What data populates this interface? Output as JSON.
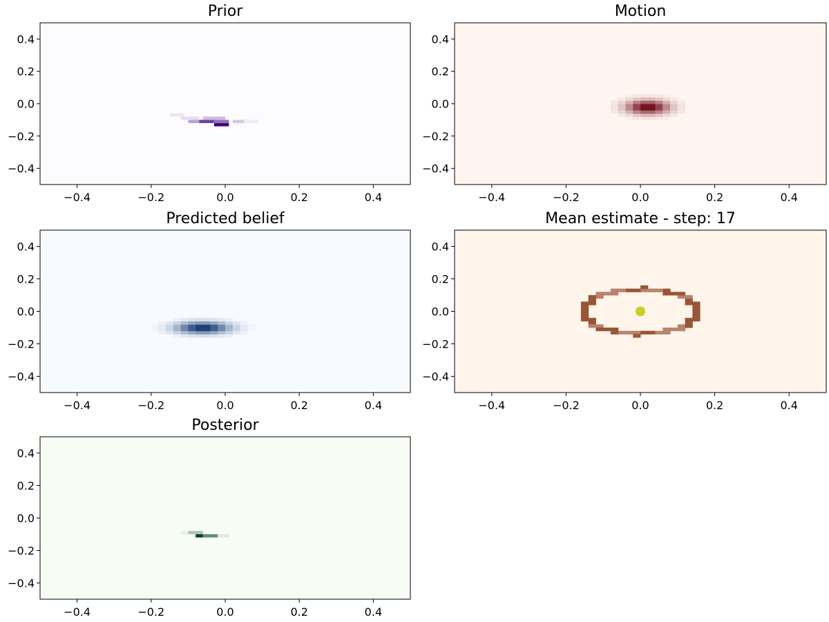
{
  "figure": {
    "background": "#ffffff",
    "panel_count": 5
  },
  "chart_data": [
    {
      "type": "heatmap",
      "title": "Prior",
      "colormap": "Purples",
      "colors": {
        "low": "#fcfbfd",
        "high": "#3f007d"
      },
      "xlim": [
        -0.5,
        0.5
      ],
      "ylim": [
        -0.5,
        0.5
      ],
      "xticks": [
        -0.4,
        -0.2,
        0.0,
        0.2,
        0.4
      ],
      "yticks": [
        -0.4,
        -0.2,
        0.0,
        0.2,
        0.4
      ],
      "xtick_labels": [
        "−0.4",
        "−0.2",
        "0.0",
        "0.2",
        "0.4"
      ],
      "ytick_labels": [
        "0.4",
        "0.2",
        "0.0",
        "−0.2",
        "−0.4"
      ],
      "xlabel": "",
      "ylabel": "",
      "grid": false,
      "cells": [
        {
          "x": -0.03,
          "y": -0.14,
          "w": 0.04,
          "h": 0.02,
          "v": 1.0
        },
        {
          "x": -0.07,
          "y": -0.12,
          "w": 0.04,
          "h": 0.02,
          "v": 0.75
        },
        {
          "x": -0.03,
          "y": -0.12,
          "w": 0.04,
          "h": 0.02,
          "v": 0.55
        },
        {
          "x": -0.1,
          "y": -0.12,
          "w": 0.03,
          "h": 0.02,
          "v": 0.35
        },
        {
          "x": 0.02,
          "y": -0.12,
          "w": 0.04,
          "h": 0.02,
          "v": 0.2
        },
        {
          "x": -0.06,
          "y": -0.1,
          "w": 0.06,
          "h": 0.02,
          "v": 0.25
        },
        {
          "x": -0.12,
          "y": -0.1,
          "w": 0.05,
          "h": 0.02,
          "v": 0.12
        },
        {
          "x": -0.15,
          "y": -0.08,
          "w": 0.04,
          "h": 0.02,
          "v": 0.08
        },
        {
          "x": 0.05,
          "y": -0.12,
          "w": 0.04,
          "h": 0.02,
          "v": 0.06
        }
      ]
    },
    {
      "type": "heatmap",
      "title": "Motion",
      "colormap": "Reds",
      "colors": {
        "low": "#fff5f0",
        "high": "#67000d"
      },
      "xlim": [
        -0.5,
        0.5
      ],
      "ylim": [
        -0.5,
        0.5
      ],
      "xticks": [
        -0.4,
        -0.2,
        0.0,
        0.2,
        0.4
      ],
      "yticks": [
        -0.4,
        -0.2,
        0.0,
        0.2,
        0.4
      ],
      "xtick_labels": [
        "−0.4",
        "−0.2",
        "0.0",
        "0.2",
        "0.4"
      ],
      "ytick_labels": [
        "0.4",
        "0.2",
        "0.0",
        "−0.2",
        "−0.4"
      ],
      "xlabel": "",
      "ylabel": "",
      "grid": false,
      "gaussian": {
        "cx": 0.02,
        "cy": -0.02,
        "sx": 0.04,
        "sy": 0.03
      }
    },
    {
      "type": "heatmap",
      "title": "Predicted belief",
      "colormap": "Blues",
      "colors": {
        "low": "#f7fbff",
        "high": "#08306b"
      },
      "xlim": [
        -0.5,
        0.5
      ],
      "ylim": [
        -0.5,
        0.5
      ],
      "xticks": [
        -0.4,
        -0.2,
        0.0,
        0.2,
        0.4
      ],
      "yticks": [
        -0.4,
        -0.2,
        0.0,
        0.2,
        0.4
      ],
      "xtick_labels": [
        "−0.4",
        "−0.2",
        "0.0",
        "0.2",
        "0.4"
      ],
      "ytick_labels": [
        "0.4",
        "0.2",
        "0.0",
        "−0.2",
        "−0.4"
      ],
      "xlabel": "",
      "ylabel": "",
      "grid": false,
      "gaussian": {
        "cx": -0.06,
        "cy": -0.1,
        "sx": 0.05,
        "sy": 0.025
      }
    },
    {
      "type": "heatmap",
      "title": "Mean estimate - step: 17",
      "colormap": "Oranges",
      "colors": {
        "low": "#fff5eb",
        "high": "#7f2704",
        "marker": "#cccc22"
      },
      "xlim": [
        -0.5,
        0.5
      ],
      "ylim": [
        -0.5,
        0.5
      ],
      "xticks": [
        -0.4,
        -0.2,
        0.0,
        0.2,
        0.4
      ],
      "yticks": [
        -0.4,
        -0.2,
        0.0,
        0.2,
        0.4
      ],
      "xtick_labels": [
        "−0.4",
        "−0.2",
        "0.0",
        "0.2",
        "0.4"
      ],
      "ytick_labels": [
        "0.4",
        "0.2",
        "0.0",
        "−0.2",
        "−0.4"
      ],
      "xlabel": "",
      "ylabel": "",
      "grid": false,
      "ellipse": {
        "cx": 0.0,
        "cy": 0.0,
        "rx": 0.15,
        "ry": 0.14
      },
      "mean_estimate": {
        "x": 0.0,
        "y": 0.0
      }
    },
    {
      "type": "heatmap",
      "title": "Posterior",
      "colormap": "Greens",
      "colors": {
        "low": "#f7fcf5",
        "high": "#00441b"
      },
      "xlim": [
        -0.5,
        0.5
      ],
      "ylim": [
        -0.5,
        0.5
      ],
      "xticks": [
        -0.4,
        -0.2,
        0.0,
        0.2,
        0.4
      ],
      "yticks": [
        -0.4,
        -0.2,
        0.0,
        0.2,
        0.4
      ],
      "xtick_labels": [
        "−0.4",
        "−0.2",
        "0.0",
        "0.2",
        "0.4"
      ],
      "ytick_labels": [
        "0.4",
        "0.2",
        "0.0",
        "−0.2",
        "−0.4"
      ],
      "xlabel": "",
      "ylabel": "",
      "grid": false,
      "cells": [
        {
          "x": -0.08,
          "y": -0.12,
          "w": 0.02,
          "h": 0.02,
          "v": 1.0
        },
        {
          "x": -0.06,
          "y": -0.12,
          "w": 0.04,
          "h": 0.02,
          "v": 0.6
        },
        {
          "x": -0.1,
          "y": -0.1,
          "w": 0.04,
          "h": 0.02,
          "v": 0.3
        },
        {
          "x": -0.02,
          "y": -0.12,
          "w": 0.03,
          "h": 0.02,
          "v": 0.1
        },
        {
          "x": -0.12,
          "y": -0.1,
          "w": 0.02,
          "h": 0.02,
          "v": 0.06
        }
      ]
    }
  ]
}
